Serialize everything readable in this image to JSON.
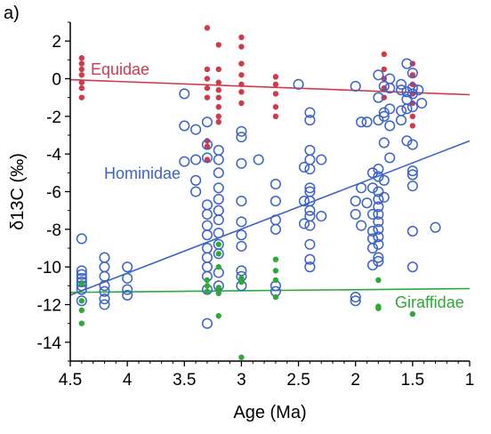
{
  "panel_label": "a)",
  "chart_data": {
    "type": "scatter",
    "xlabel": "Age (Ma)",
    "ylabel": "δ13C (‰)",
    "xlim": [
      4.5,
      1.0
    ],
    "ylim": [
      -15,
      3
    ],
    "x_reversed": true,
    "x_ticks": [
      4.5,
      4,
      3.5,
      3,
      2.5,
      2,
      1.5,
      1
    ],
    "x_tick_labels": [
      "4.5",
      "4",
      "3.5",
      "3",
      "2.5",
      "2",
      "1.5",
      "1"
    ],
    "y_ticks": [
      2,
      0,
      -2,
      -4,
      -6,
      -8,
      -10,
      -12,
      -14
    ],
    "y_tick_labels": [
      "2",
      "0",
      "-2",
      "-4",
      "-6",
      "-8",
      "-10",
      "-12",
      "-14"
    ],
    "grid": false,
    "series": [
      {
        "name": "Equidae",
        "color": "#d13a4a",
        "marker": "filled-circle",
        "trend": {
          "x": [
            4.5,
            1.0
          ],
          "y": [
            -0.05,
            -0.85
          ]
        },
        "points": [
          [
            4.4,
            1.1
          ],
          [
            4.4,
            0.8
          ],
          [
            4.4,
            0.5
          ],
          [
            4.4,
            0.2
          ],
          [
            4.4,
            -0.2
          ],
          [
            4.4,
            -0.5
          ],
          [
            4.4,
            -1.0
          ],
          [
            3.3,
            2.7
          ],
          [
            3.3,
            0.5
          ],
          [
            3.3,
            0.0
          ],
          [
            3.3,
            -0.5
          ],
          [
            3.3,
            -1.0
          ],
          [
            3.3,
            -3.3
          ],
          [
            3.3,
            -3.6
          ],
          [
            3.3,
            -4.3
          ],
          [
            3.2,
            1.8
          ],
          [
            3.2,
            0.5
          ],
          [
            3.2,
            -0.2
          ],
          [
            3.2,
            -0.6
          ],
          [
            3.2,
            -1.0
          ],
          [
            3.2,
            -1.5
          ],
          [
            3.2,
            -2.0
          ],
          [
            3.2,
            -2.3
          ],
          [
            3.0,
            2.2
          ],
          [
            3.0,
            1.7
          ],
          [
            3.0,
            0.8
          ],
          [
            3.0,
            0.2
          ],
          [
            3.0,
            -0.3
          ],
          [
            3.0,
            -0.7
          ],
          [
            3.0,
            -1.3
          ],
          [
            2.7,
            0.1
          ],
          [
            2.7,
            -0.3
          ],
          [
            2.7,
            -0.8
          ],
          [
            2.7,
            -1.5
          ],
          [
            2.7,
            -2.0
          ],
          [
            1.75,
            1.3
          ],
          [
            1.75,
            0.5
          ],
          [
            1.75,
            0.0
          ],
          [
            1.75,
            -0.5
          ],
          [
            1.75,
            -1.0
          ],
          [
            1.5,
            0.8
          ],
          [
            1.5,
            0.2
          ],
          [
            1.5,
            -0.3
          ],
          [
            1.5,
            -0.8
          ],
          [
            1.5,
            -1.3
          ],
          [
            1.5,
            -2.0
          ],
          [
            1.5,
            -2.5
          ]
        ]
      },
      {
        "name": "Hominidae",
        "color": "#3b63c8",
        "marker": "open-circle",
        "trend": {
          "x": [
            4.5,
            1.0
          ],
          "y": [
            -11.5,
            -3.3
          ]
        },
        "points": [
          [
            4.4,
            -8.5
          ],
          [
            4.4,
            -10.2
          ],
          [
            4.4,
            -10.4
          ],
          [
            4.4,
            -10.6
          ],
          [
            4.4,
            -10.8
          ],
          [
            4.4,
            -11.0
          ],
          [
            4.4,
            -11.2
          ],
          [
            4.4,
            -11.8
          ],
          [
            4.2,
            -9.5
          ],
          [
            4.2,
            -10.0
          ],
          [
            4.2,
            -10.5
          ],
          [
            4.2,
            -11.0
          ],
          [
            4.2,
            -11.3
          ],
          [
            4.2,
            -11.7
          ],
          [
            4.2,
            -12.0
          ],
          [
            4.0,
            -10.0
          ],
          [
            4.0,
            -10.6
          ],
          [
            4.0,
            -11.2
          ],
          [
            4.0,
            -11.5
          ],
          [
            3.5,
            -0.8
          ],
          [
            3.5,
            -2.5
          ],
          [
            3.5,
            -4.4
          ],
          [
            3.4,
            -2.7
          ],
          [
            3.4,
            -4.3
          ],
          [
            3.4,
            -5.4
          ],
          [
            3.4,
            -6.0
          ],
          [
            3.3,
            -2.3
          ],
          [
            3.3,
            -3.5
          ],
          [
            3.3,
            -4.2
          ],
          [
            3.3,
            -6.7
          ],
          [
            3.3,
            -7.2
          ],
          [
            3.3,
            -7.8
          ],
          [
            3.3,
            -8.3
          ],
          [
            3.3,
            -9.0
          ],
          [
            3.3,
            -9.5
          ],
          [
            3.3,
            -10.0
          ],
          [
            3.3,
            -10.5
          ],
          [
            3.3,
            -11.2
          ],
          [
            3.3,
            -13.0
          ],
          [
            3.2,
            -3.8
          ],
          [
            3.2,
            -4.3
          ],
          [
            3.2,
            -5.0
          ],
          [
            3.2,
            -5.8
          ],
          [
            3.2,
            -6.4
          ],
          [
            3.2,
            -7.0
          ],
          [
            3.2,
            -7.5
          ],
          [
            3.2,
            -8.2
          ],
          [
            3.2,
            -8.8
          ],
          [
            3.2,
            -9.3
          ],
          [
            3.2,
            -10.3
          ],
          [
            3.2,
            -11.0
          ],
          [
            3.0,
            -2.8
          ],
          [
            3.0,
            -3.1
          ],
          [
            3.0,
            -4.5
          ],
          [
            3.0,
            -6.5
          ],
          [
            3.0,
            -7.6
          ],
          [
            3.0,
            -8.3
          ],
          [
            3.0,
            -8.9
          ],
          [
            3.0,
            -10.2
          ],
          [
            3.0,
            -10.5
          ],
          [
            3.0,
            -11.0
          ],
          [
            2.85,
            -4.3
          ],
          [
            2.7,
            -5.6
          ],
          [
            2.7,
            -6.5
          ],
          [
            2.7,
            -7.5
          ],
          [
            2.7,
            -8.0
          ],
          [
            2.7,
            -11.0
          ],
          [
            2.7,
            -11.3
          ],
          [
            2.5,
            -0.3
          ],
          [
            2.45,
            -4.7
          ],
          [
            2.45,
            -6.5
          ],
          [
            2.45,
            -7.7
          ],
          [
            2.4,
            -1.8
          ],
          [
            2.4,
            -2.2
          ],
          [
            2.4,
            -3.8
          ],
          [
            2.4,
            -4.3
          ],
          [
            2.4,
            -4.8
          ],
          [
            2.4,
            -5.8
          ],
          [
            2.4,
            -6.0
          ],
          [
            2.4,
            -6.5
          ],
          [
            2.4,
            -7.0
          ],
          [
            2.4,
            -7.3
          ],
          [
            2.4,
            -7.8
          ],
          [
            2.4,
            -8.8
          ],
          [
            2.4,
            -9.6
          ],
          [
            2.4,
            -10.0
          ],
          [
            2.3,
            -4.3
          ],
          [
            2.3,
            -7.3
          ],
          [
            2.0,
            -0.4
          ],
          [
            2.0,
            -6.5
          ],
          [
            2.0,
            -7.2
          ],
          [
            2.0,
            -11.6
          ],
          [
            2.0,
            -11.8
          ],
          [
            1.95,
            -2.3
          ],
          [
            1.95,
            -5.8
          ],
          [
            1.95,
            -7.8
          ],
          [
            1.9,
            -2.3
          ],
          [
            1.9,
            -6.6
          ],
          [
            1.85,
            -5.0
          ],
          [
            1.85,
            -5.8
          ],
          [
            1.85,
            -7.2
          ],
          [
            1.85,
            -8.1
          ],
          [
            1.85,
            -8.5
          ],
          [
            1.85,
            -9.0
          ],
          [
            1.85,
            -9.9
          ],
          [
            1.8,
            0.2
          ],
          [
            1.8,
            -1.0
          ],
          [
            1.8,
            -2.2
          ],
          [
            1.8,
            -4.8
          ],
          [
            1.8,
            -5.2
          ],
          [
            1.8,
            -6.0
          ],
          [
            1.8,
            -6.4
          ],
          [
            1.8,
            -6.8
          ],
          [
            1.8,
            -7.2
          ],
          [
            1.8,
            -7.6
          ],
          [
            1.8,
            -8.0
          ],
          [
            1.8,
            -8.4
          ],
          [
            1.8,
            -8.8
          ],
          [
            1.8,
            -9.5
          ],
          [
            1.8,
            -9.7
          ],
          [
            1.75,
            -0.4
          ],
          [
            1.75,
            -1.8
          ],
          [
            1.75,
            -2.0
          ],
          [
            1.75,
            -3.4
          ],
          [
            1.75,
            -5.4
          ],
          [
            1.75,
            -6.3
          ],
          [
            1.7,
            0.0
          ],
          [
            1.7,
            -0.5
          ],
          [
            1.7,
            -1.6
          ],
          [
            1.7,
            -2.5
          ],
          [
            1.7,
            -4.2
          ],
          [
            1.6,
            -0.3
          ],
          [
            1.6,
            -0.6
          ],
          [
            1.6,
            -1.7
          ],
          [
            1.6,
            -2.2
          ],
          [
            1.55,
            0.8
          ],
          [
            1.55,
            -0.7
          ],
          [
            1.55,
            -1.1
          ],
          [
            1.55,
            -1.6
          ],
          [
            1.55,
            -3.3
          ],
          [
            1.5,
            0.3
          ],
          [
            1.5,
            -0.5
          ],
          [
            1.5,
            -0.8
          ],
          [
            1.5,
            -1.5
          ],
          [
            1.5,
            -3.5
          ],
          [
            1.5,
            -4.9
          ],
          [
            1.5,
            -5.1
          ],
          [
            1.5,
            -5.7
          ],
          [
            1.5,
            -8.1
          ],
          [
            1.5,
            -10.0
          ],
          [
            1.45,
            -0.6
          ],
          [
            1.42,
            -1.3
          ],
          [
            1.3,
            -7.9
          ]
        ]
      },
      {
        "name": "Giraffidae",
        "color": "#2ea836",
        "marker": "filled-circle",
        "trend": {
          "x": [
            4.5,
            1.0
          ],
          "y": [
            -11.35,
            -11.15
          ]
        },
        "points": [
          [
            4.4,
            -10.9
          ],
          [
            4.4,
            -11.8
          ],
          [
            4.4,
            -12.3
          ],
          [
            4.4,
            -13.0
          ],
          [
            3.3,
            -10.7
          ],
          [
            3.3,
            -11.0
          ],
          [
            3.3,
            -11.3
          ],
          [
            3.2,
            -8.8
          ],
          [
            3.2,
            -9.3
          ],
          [
            3.2,
            -10.0
          ],
          [
            3.2,
            -11.1
          ],
          [
            3.2,
            -11.4
          ],
          [
            3.2,
            -12.6
          ],
          [
            3.0,
            -10.6
          ],
          [
            3.0,
            -10.8
          ],
          [
            3.0,
            -14.8
          ],
          [
            2.7,
            -9.6
          ],
          [
            2.7,
            -10.2
          ],
          [
            2.7,
            -10.7
          ],
          [
            2.7,
            -11.6
          ],
          [
            1.8,
            -10.7
          ],
          [
            1.8,
            -12.1
          ],
          [
            1.8,
            -12.2
          ],
          [
            1.5,
            -12.5
          ]
        ]
      }
    ],
    "annotations": [
      {
        "text": "Equidae",
        "series": "Equidae"
      },
      {
        "text": "Hominidae",
        "series": "Hominidae"
      },
      {
        "text": "Giraffidae",
        "series": "Giraffidae"
      }
    ]
  }
}
